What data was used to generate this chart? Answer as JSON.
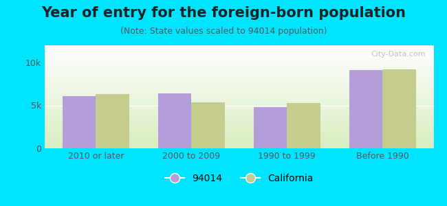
{
  "title": "Year of entry for the foreign-born population",
  "subtitle": "(Note: State values scaled to 94014 population)",
  "categories": [
    "2010 or later",
    "2000 to 2009",
    "1990 to 1999",
    "Before 1990"
  ],
  "values_94014": [
    6100,
    6400,
    4800,
    9100
  ],
  "values_california": [
    6300,
    5400,
    5300,
    9200
  ],
  "color_94014": "#b39ddb",
  "color_california": "#c5cc8e",
  "background_outer": "#00e5ff",
  "ylim": [
    0,
    12000
  ],
  "yticks": [
    0,
    5000,
    10000
  ],
  "ytick_labels": [
    "0",
    "5k",
    "10k"
  ],
  "legend_label_94014": "94014",
  "legend_label_california": "California",
  "bar_width": 0.35,
  "title_fontsize": 15,
  "subtitle_fontsize": 9,
  "tick_fontsize": 9,
  "legend_fontsize": 10
}
